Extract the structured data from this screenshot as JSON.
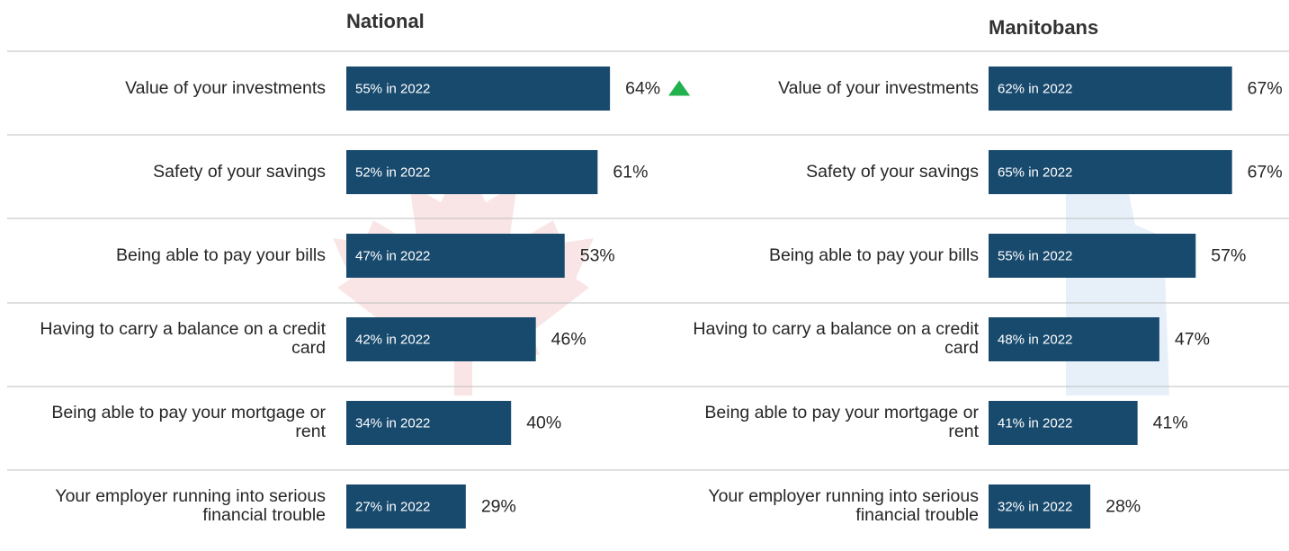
{
  "chart_data": [
    {
      "type": "bar",
      "orientation": "horizontal",
      "title": "National",
      "categories": [
        "Value of your investments",
        "Safety of your savings",
        "Being able to pay your bills",
        "Having to carry a balance on a credit card",
        "Being able to pay your mortgage or rent",
        "Your employer running into serious financial trouble"
      ],
      "values": [
        64,
        61,
        53,
        46,
        40,
        29
      ],
      "value_labels": [
        "64%",
        "61%",
        "53%",
        "46%",
        "40%",
        "29%"
      ],
      "prior_labels": [
        "55% in 2022",
        "52% in 2022",
        "47% in 2022",
        "42% in 2022",
        "34% in 2022",
        "27% in 2022"
      ],
      "increase_flags": [
        true,
        false,
        false,
        false,
        false,
        false
      ],
      "increase_color": "#22b14c",
      "xlim": [
        0,
        100
      ],
      "color": "#184a6e"
    },
    {
      "type": "bar",
      "orientation": "horizontal",
      "title": "Manitobans",
      "categories": [
        "Value of your investments",
        "Safety of your savings",
        "Being able to pay your bills",
        "Having to carry a balance on a credit card",
        "Being able to pay your mortgage or rent",
        "Your employer running into serious financial trouble"
      ],
      "values": [
        67,
        67,
        57,
        47,
        41,
        28
      ],
      "value_labels": [
        "67%",
        "67%",
        "57%",
        "47%",
        "41%",
        "28%"
      ],
      "prior_labels": [
        "62% in 2022",
        "65% in 2022",
        "55% in 2022",
        "48% in 2022",
        "41% in 2022",
        "32% in 2022"
      ],
      "increase_flags": [
        false,
        false,
        false,
        false,
        false,
        false
      ],
      "increase_color": "#22b14c",
      "xlim": [
        0,
        100
      ],
      "color": "#184a6e"
    }
  ]
}
